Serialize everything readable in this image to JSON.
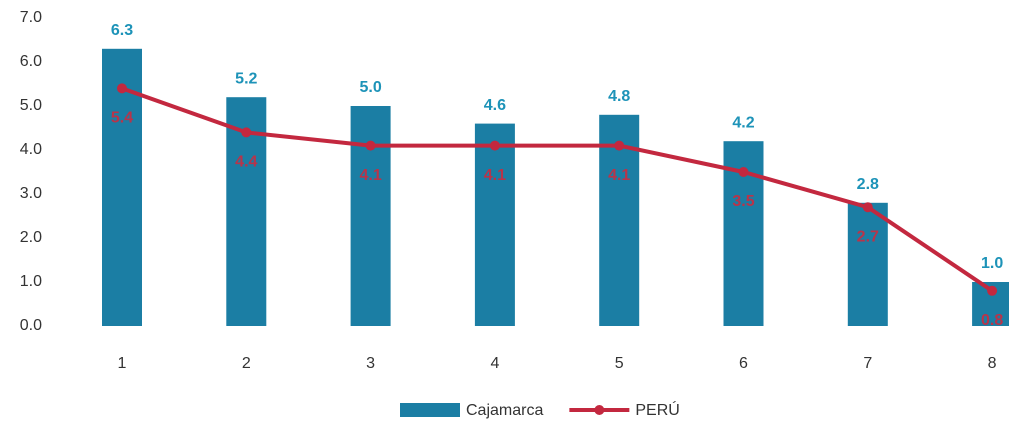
{
  "chart_data": {
    "type": "bar",
    "categories": [
      "1",
      "2",
      "3",
      "4",
      "5",
      "6",
      "7",
      "8"
    ],
    "series": [
      {
        "name": "Cajamarca",
        "type": "bar",
        "color": "#1b7ea4",
        "label_color": "#1d93b8",
        "values": [
          6.3,
          5.2,
          5.0,
          4.6,
          4.8,
          4.2,
          2.8,
          1.0
        ],
        "value_labels": [
          "6.3",
          "5.2",
          "5.0",
          "4.6",
          "4.8",
          "4.2",
          "2.8",
          "1.0"
        ]
      },
      {
        "name": "PERÚ",
        "type": "line",
        "color": "#c3283f",
        "label_color": "#b8344a",
        "values": [
          5.4,
          4.4,
          4.1,
          4.1,
          4.1,
          3.5,
          2.7,
          0.8
        ],
        "value_labels": [
          "5.4",
          "4.4",
          "4.1",
          "4.1",
          "4.1",
          "3.5",
          "2.7",
          "0.8"
        ]
      }
    ],
    "ylim": [
      0,
      7
    ],
    "yticks": [
      {
        "value": 0,
        "label": "0.0"
      },
      {
        "value": 1,
        "label": "1.0"
      },
      {
        "value": 2,
        "label": "2.0"
      },
      {
        "value": 3,
        "label": "3.0"
      },
      {
        "value": 4,
        "label": "4.0"
      },
      {
        "value": 5,
        "label": "5.0"
      },
      {
        "value": 6,
        "label": "6.0"
      },
      {
        "value": 7,
        "label": "7.0"
      }
    ],
    "grid": false,
    "legend": "bottom"
  }
}
